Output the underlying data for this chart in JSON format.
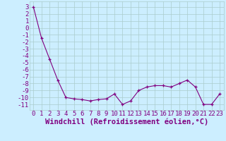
{
  "x": [
    0,
    1,
    2,
    3,
    4,
    5,
    6,
    7,
    8,
    9,
    10,
    11,
    12,
    13,
    14,
    15,
    16,
    17,
    18,
    19,
    20,
    21,
    22,
    23
  ],
  "y": [
    3,
    -1.5,
    -4.5,
    -7.5,
    -10,
    -10.2,
    -10.3,
    -10.5,
    -10.3,
    -10.2,
    -9.5,
    -11,
    -10.5,
    -9.0,
    -8.5,
    -8.3,
    -8.3,
    -8.5,
    -8.0,
    -7.5,
    -8.5,
    -11,
    -11,
    -9.5
  ],
  "line_color": "#800080",
  "marker": "+",
  "marker_color": "#800080",
  "bg_color": "#cceeff",
  "grid_color": "#aacccc",
  "xlabel": "Windchill (Refroidissement éolien,°C)",
  "ylabel_ticks": [
    3,
    2,
    1,
    0,
    -1,
    -2,
    -3,
    -4,
    -5,
    -6,
    -7,
    -8,
    -9,
    -10,
    -11
  ],
  "xlim": [
    -0.5,
    23.5
  ],
  "ylim": [
    -11.8,
    3.8
  ],
  "xticks": [
    0,
    1,
    2,
    3,
    4,
    5,
    6,
    7,
    8,
    9,
    10,
    11,
    12,
    13,
    14,
    15,
    16,
    17,
    18,
    19,
    20,
    21,
    22,
    23
  ],
  "font_color": "#800080",
  "font_size": 6.5,
  "xlabel_fontsize": 7.5
}
